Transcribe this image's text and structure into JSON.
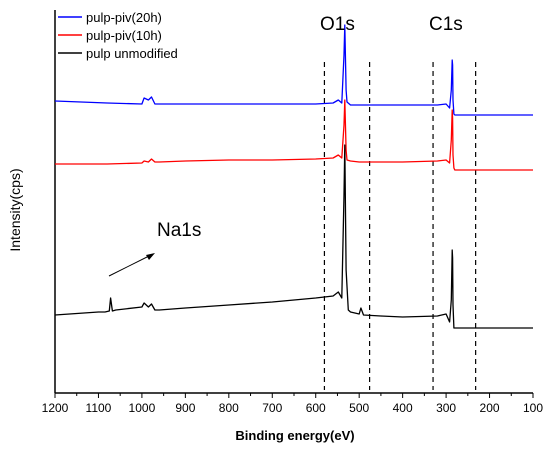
{
  "chart_data": {
    "type": "line",
    "title": "",
    "xlabel": "Binding energy(eV)",
    "ylabel": "Intensity(cps)",
    "x_reversed": true,
    "xlim": [
      1200,
      100
    ],
    "x_ticks": [
      "1200",
      "1100",
      "1000",
      "900",
      "800",
      "700",
      "600",
      "500",
      "400",
      "300",
      "200",
      "100"
    ],
    "y_ticks_shown": false,
    "grid": false,
    "legend_position": "top-left",
    "legend": [
      {
        "label": "pulp-piv(20h)",
        "color": "#0000ff"
      },
      {
        "label": "pulp-piv(10h)",
        "color": "#ff0000"
      },
      {
        "label": "pulp unmodified",
        "color": "#000000"
      }
    ],
    "peak_labels": [
      {
        "text": "O1s"
      },
      {
        "text": "C1s"
      },
      {
        "text": "Na1s"
      }
    ],
    "reference_lines_ev": [
      580,
      476,
      330,
      232
    ],
    "series": [
      {
        "name": "pulp-piv(20h)",
        "color": "#0000ff",
        "x": [
          1200,
          1080,
          1000,
          995,
          985,
          978,
          970,
          960,
          900,
          800,
          700,
          600,
          560,
          548,
          540,
          535,
          533,
          530,
          528,
          520,
          500,
          450,
          400,
          320,
          300,
          292,
          288,
          286,
          285,
          284,
          282,
          280,
          250,
          200,
          100
        ],
        "y": [
          0.19,
          0.17,
          0.16,
          0.22,
          0.2,
          0.23,
          0.16,
          0.16,
          0.16,
          0.16,
          0.16,
          0.16,
          0.17,
          0.2,
          0.17,
          0.65,
          0.95,
          0.3,
          0.18,
          0.15,
          0.15,
          0.15,
          0.15,
          0.15,
          0.16,
          0.12,
          0.3,
          0.6,
          0.55,
          0.2,
          0.06,
          0.05,
          0.05,
          0.05,
          0.05
        ]
      },
      {
        "name": "pulp-piv(10h)",
        "color": "#ff0000",
        "x": [
          1200,
          1080,
          1000,
          995,
          985,
          978,
          970,
          960,
          900,
          800,
          700,
          600,
          560,
          548,
          540,
          535,
          533,
          530,
          528,
          520,
          500,
          450,
          400,
          320,
          300,
          292,
          288,
          286,
          285,
          284,
          282,
          280,
          250,
          200,
          100
        ],
        "y": [
          0.06,
          0.06,
          0.07,
          0.09,
          0.08,
          0.11,
          0.08,
          0.08,
          0.09,
          0.1,
          0.1,
          0.11,
          0.12,
          0.15,
          0.12,
          0.45,
          0.7,
          0.2,
          0.1,
          0.09,
          0.08,
          0.08,
          0.08,
          0.09,
          0.1,
          0.07,
          0.3,
          0.6,
          0.52,
          0.15,
          0.02,
          0.0,
          0.0,
          0.0,
          0.0
        ]
      },
      {
        "name": "pulp unmodified",
        "color": "#000000",
        "x": [
          1200,
          1100,
          1085,
          1075,
          1072,
          1068,
          1060,
          1000,
          995,
          985,
          978,
          970,
          960,
          900,
          800,
          700,
          600,
          560,
          548,
          540,
          535,
          533,
          530,
          525,
          520,
          500,
          496,
          490,
          450,
          400,
          320,
          300,
          292,
          288,
          286,
          285,
          284,
          282,
          280,
          250,
          200,
          100
        ],
        "y": [
          0.05,
          0.08,
          0.08,
          0.09,
          0.22,
          0.09,
          0.1,
          0.13,
          0.17,
          0.13,
          0.16,
          0.1,
          0.1,
          0.12,
          0.15,
          0.18,
          0.22,
          0.24,
          0.28,
          0.22,
          1.25,
          1.75,
          0.5,
          0.1,
          0.08,
          0.06,
          0.12,
          0.05,
          0.04,
          0.03,
          0.04,
          0.06,
          -0.02,
          0.2,
          0.7,
          0.62,
          0.15,
          -0.08,
          -0.08,
          -0.08,
          -0.08,
          -0.08
        ]
      }
    ]
  }
}
